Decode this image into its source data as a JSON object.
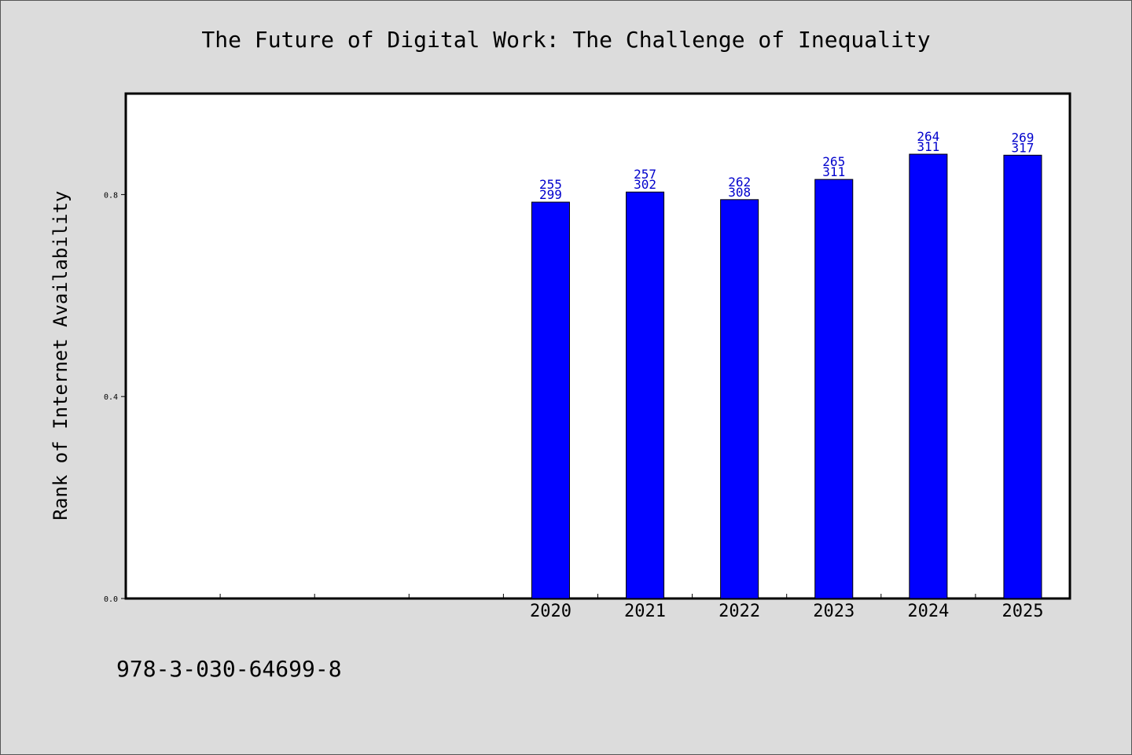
{
  "chart_data": {
    "type": "bar",
    "title": "The Future of Digital Work: The Challenge of Inequality",
    "ylabel": "Rank of Internet Availability",
    "xlabel": "",
    "ylim": [
      0.0,
      1.0
    ],
    "yticks": [
      "0.0",
      "0.4",
      "0.8"
    ],
    "categories": [
      "",
      "",
      "",
      "",
      "2020",
      "2021",
      "2022",
      "2023",
      "2024",
      "2025"
    ],
    "values": [
      null,
      null,
      null,
      null,
      0.785,
      0.805,
      0.79,
      0.83,
      0.88,
      0.878
    ],
    "bar_labels_top": [
      "",
      "",
      "",
      "",
      "255",
      "257",
      "262",
      "265",
      "264",
      "269"
    ],
    "bar_labels_bottom": [
      "",
      "",
      "",
      "",
      "299",
      "302",
      "308",
      "311",
      "311",
      "317"
    ],
    "bar_color": "#0000ff",
    "label_color": "#0000cc",
    "grid": false,
    "legend": false
  },
  "footer": {
    "isbn": "978-3-030-64699-8"
  }
}
